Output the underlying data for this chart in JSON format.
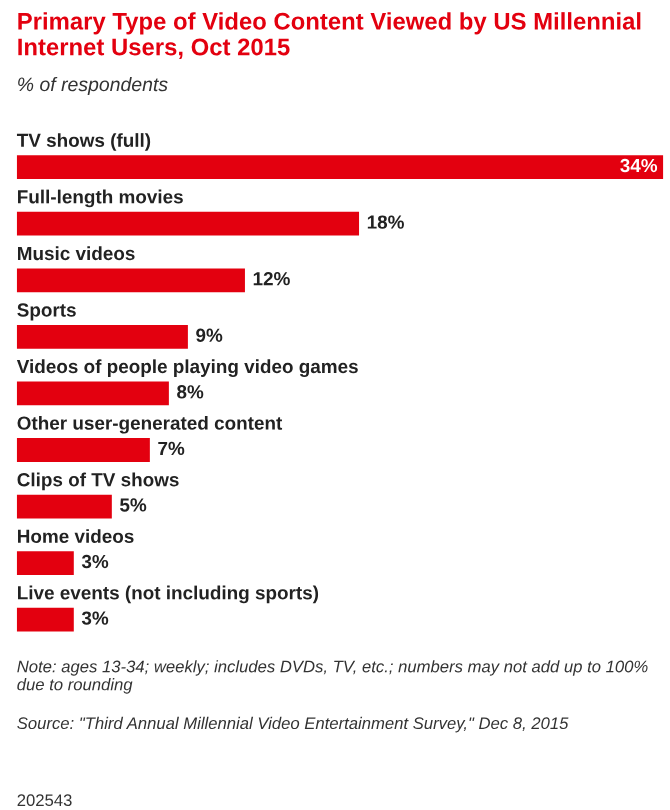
{
  "chart_data": {
    "type": "bar",
    "orientation": "horizontal",
    "title": "Primary Type of Video Content Viewed by US Millennial Internet Users, Oct 2015",
    "subtitle": "% of respondents",
    "categories": [
      "TV shows (full)",
      "Full-length movies",
      "Music videos",
      "Sports",
      "Videos of people playing video games",
      "Other user-generated content",
      "Clips of TV shows",
      "Home videos",
      "Live events (not including sports)"
    ],
    "values": [
      34,
      18,
      12,
      9,
      8,
      7,
      5,
      3,
      3
    ],
    "value_labels": [
      "34%",
      "18%",
      "12%",
      "9%",
      "8%",
      "7%",
      "5%",
      "3%",
      "3%"
    ],
    "color": "#e3000f",
    "annotations": [
      "Note: ages 13-34; weekly; includes DVDs, TV, etc.; numbers may not add up to 100% due to rounding",
      "Source: \"Third Annual Millennial Video Entertainment Survey,\" Dec 8, 2015",
      "202543"
    ]
  }
}
